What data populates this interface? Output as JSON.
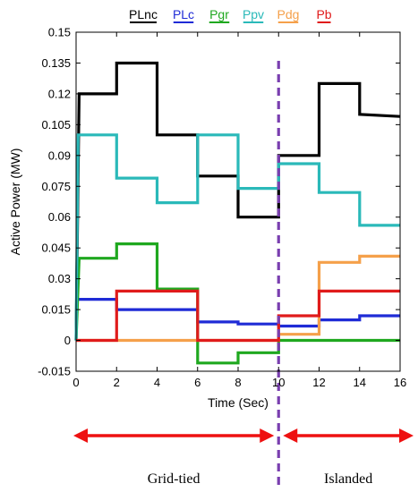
{
  "chart_data": {
    "type": "line",
    "step": true,
    "xlabel": "Time (Sec)",
    "ylabel": "Active Power (MW)",
    "xlim": [
      0,
      16
    ],
    "ylim": [
      -0.015,
      0.15
    ],
    "xticks": [
      0,
      2,
      4,
      6,
      8,
      10,
      12,
      14,
      16
    ],
    "yticks": [
      -0.015,
      0,
      0.015,
      0.03,
      0.045,
      0.06,
      0.075,
      0.09,
      0.105,
      0.12,
      0.135,
      0.15
    ],
    "ytick_labels": [
      "-0.015",
      "0",
      "0.015",
      "0.03",
      "0.045",
      "0.06",
      "0.075",
      "0.09",
      "0.105",
      "0.12",
      "0.135",
      "0.15"
    ],
    "grid": false,
    "legend_position": "top",
    "series": [
      {
        "name": "PLnc",
        "color": "#000000",
        "points": [
          [
            0,
            0
          ],
          [
            0.15,
            0.12
          ],
          [
            2,
            0.12
          ],
          [
            2,
            0.135
          ],
          [
            4,
            0.135
          ],
          [
            4,
            0.1
          ],
          [
            6,
            0.1
          ],
          [
            6,
            0.08
          ],
          [
            8,
            0.08
          ],
          [
            8,
            0.06
          ],
          [
            10,
            0.06
          ],
          [
            10,
            0.09
          ],
          [
            12,
            0.09
          ],
          [
            12,
            0.125
          ],
          [
            14,
            0.125
          ],
          [
            14,
            0.11
          ],
          [
            16,
            0.109
          ]
        ]
      },
      {
        "name": "PLc",
        "color": "#1f2bd6",
        "points": [
          [
            0,
            0.02
          ],
          [
            2,
            0.02
          ],
          [
            2,
            0.015
          ],
          [
            6,
            0.015
          ],
          [
            6,
            0.009
          ],
          [
            8,
            0.009
          ],
          [
            8,
            0.008
          ],
          [
            10,
            0.008
          ],
          [
            10,
            0.007
          ],
          [
            12,
            0.007
          ],
          [
            12,
            0.01
          ],
          [
            14,
            0.01
          ],
          [
            14,
            0.012
          ],
          [
            16,
            0.012
          ]
        ]
      },
      {
        "name": "Pgr",
        "color": "#1fa81f",
        "points": [
          [
            0,
            0
          ],
          [
            0.15,
            0.04
          ],
          [
            2,
            0.04
          ],
          [
            2,
            0.047
          ],
          [
            4,
            0.047
          ],
          [
            4,
            0.025
          ],
          [
            6,
            0.025
          ],
          [
            6,
            -0.011
          ],
          [
            8,
            -0.011
          ],
          [
            8,
            -0.006
          ],
          [
            10,
            -0.006
          ],
          [
            10,
            0
          ],
          [
            16,
            0
          ]
        ]
      },
      {
        "name": "Ppv",
        "color": "#2ab9b9",
        "points": [
          [
            0,
            0
          ],
          [
            0.1,
            0.1
          ],
          [
            2,
            0.1
          ],
          [
            2,
            0.079
          ],
          [
            4,
            0.079
          ],
          [
            4,
            0.067
          ],
          [
            6,
            0.067
          ],
          [
            6,
            0.1
          ],
          [
            8,
            0.1
          ],
          [
            8,
            0.074
          ],
          [
            10,
            0.074
          ],
          [
            10,
            0.086
          ],
          [
            12,
            0.086
          ],
          [
            12,
            0.072
          ],
          [
            14,
            0.072
          ],
          [
            14,
            0.056
          ],
          [
            16,
            0.056
          ]
        ]
      },
      {
        "name": "Pdg",
        "color": "#f5a04a",
        "points": [
          [
            0,
            0
          ],
          [
            10,
            0
          ],
          [
            10,
            0.003
          ],
          [
            12,
            0.003
          ],
          [
            12,
            0.038
          ],
          [
            14,
            0.038
          ],
          [
            14,
            0.041
          ],
          [
            16,
            0.041
          ]
        ]
      },
      {
        "name": "Pb",
        "color": "#e01b1b",
        "points": [
          [
            0,
            0
          ],
          [
            2,
            0
          ],
          [
            2,
            0.024
          ],
          [
            6,
            0.024
          ],
          [
            6,
            0
          ],
          [
            10,
            0
          ],
          [
            10,
            0.012
          ],
          [
            12,
            0.012
          ],
          [
            12,
            0.024
          ],
          [
            16,
            0.024
          ]
        ]
      }
    ],
    "annotations": {
      "divider_x": 10,
      "divider_color": "#7a3fb0",
      "arrow_color": "#ee1111",
      "regions": [
        {
          "label": "Grid-tied",
          "from": 0,
          "to": 10
        },
        {
          "label": "Islanded",
          "from": 10,
          "to": 16
        }
      ]
    }
  }
}
